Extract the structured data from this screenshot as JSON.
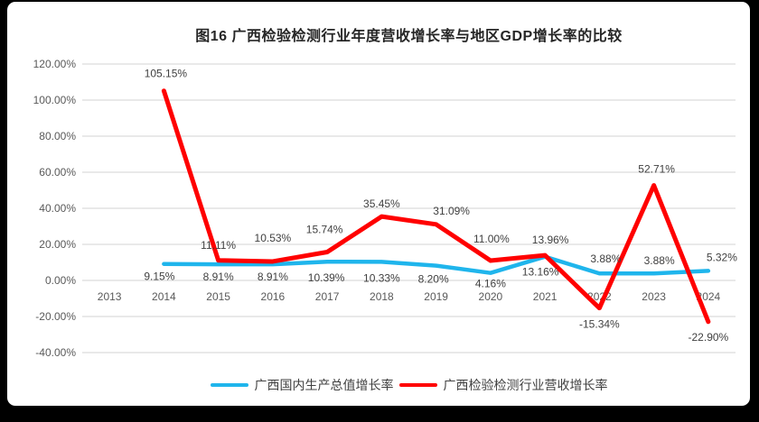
{
  "window": {
    "background": "#000000",
    "panel_background": "#ffffff"
  },
  "chart_data": {
    "type": "line",
    "title": "图16 广西检验检测行业年度营收增长率与地区GDP增长率的比较",
    "categories": [
      "2013",
      "2014",
      "2015",
      "2016",
      "2017",
      "2018",
      "2019",
      "2020",
      "2021",
      "2022",
      "2023",
      "2024"
    ],
    "series": [
      {
        "name": "广西国内生产总值增长率",
        "color": "#1FB5EC",
        "values": [
          null,
          9.15,
          8.91,
          8.91,
          10.39,
          10.33,
          8.2,
          4.16,
          13.16,
          3.88,
          3.88,
          5.32
        ],
        "point_labels": [
          null,
          "9.15%",
          "8.91%",
          "8.91%",
          "10.39%",
          "10.33%",
          "8.20%",
          "4.16%",
          "13.16%",
          "3.88%",
          "3.88%",
          "5.32%"
        ],
        "label_offsets": [
          null,
          [
            -5,
            14
          ],
          [
            0,
            14
          ],
          [
            0,
            14
          ],
          [
            -1,
            18
          ],
          [
            0,
            18
          ],
          [
            -3,
            15
          ],
          [
            0,
            12
          ],
          [
            -5,
            17
          ],
          [
            7,
            -16
          ],
          [
            6,
            -14
          ],
          [
            15,
            -15
          ]
        ]
      },
      {
        "name": "广西检验检测行业营收增长率",
        "color": "#FF0000",
        "values": [
          null,
          105.15,
          11.11,
          10.53,
          15.74,
          35.45,
          31.09,
          11.0,
          13.96,
          -15.34,
          52.71,
          -22.9
        ],
        "point_labels": [
          null,
          "105.15%",
          "11.11%",
          "10.53%",
          "15.74%",
          "35.45%",
          "31.09%",
          "11.00%",
          "13.96%",
          "-15.34%",
          "52.71%",
          "-22.90%"
        ],
        "label_offsets": [
          null,
          [
            2,
            -19
          ],
          [
            0,
            -17
          ],
          [
            0,
            -26
          ],
          [
            -3,
            -25
          ],
          [
            0,
            -14
          ],
          [
            17,
            -15
          ],
          [
            1,
            -24
          ],
          [
            6,
            -17
          ],
          [
            0,
            18
          ],
          [
            3,
            -18
          ],
          [
            0,
            17
          ]
        ]
      }
    ],
    "y_tick_values": [
      120,
      100,
      80,
      60,
      40,
      20,
      0,
      -20,
      -40
    ],
    "y_tick_labels": [
      "120.00%",
      "100.00%",
      "80.00%",
      "60.00%",
      "40.00%",
      "20.00%",
      "0.00%",
      "-20.00%",
      "-40.00%"
    ],
    "ylim": [
      -40,
      120
    ],
    "xlabel": "",
    "ylabel": "",
    "grid": true,
    "gridline_color": "#DCDCDC",
    "label_color": "#404040",
    "axis_text_color": "#595959",
    "legend_position": "bottom"
  }
}
